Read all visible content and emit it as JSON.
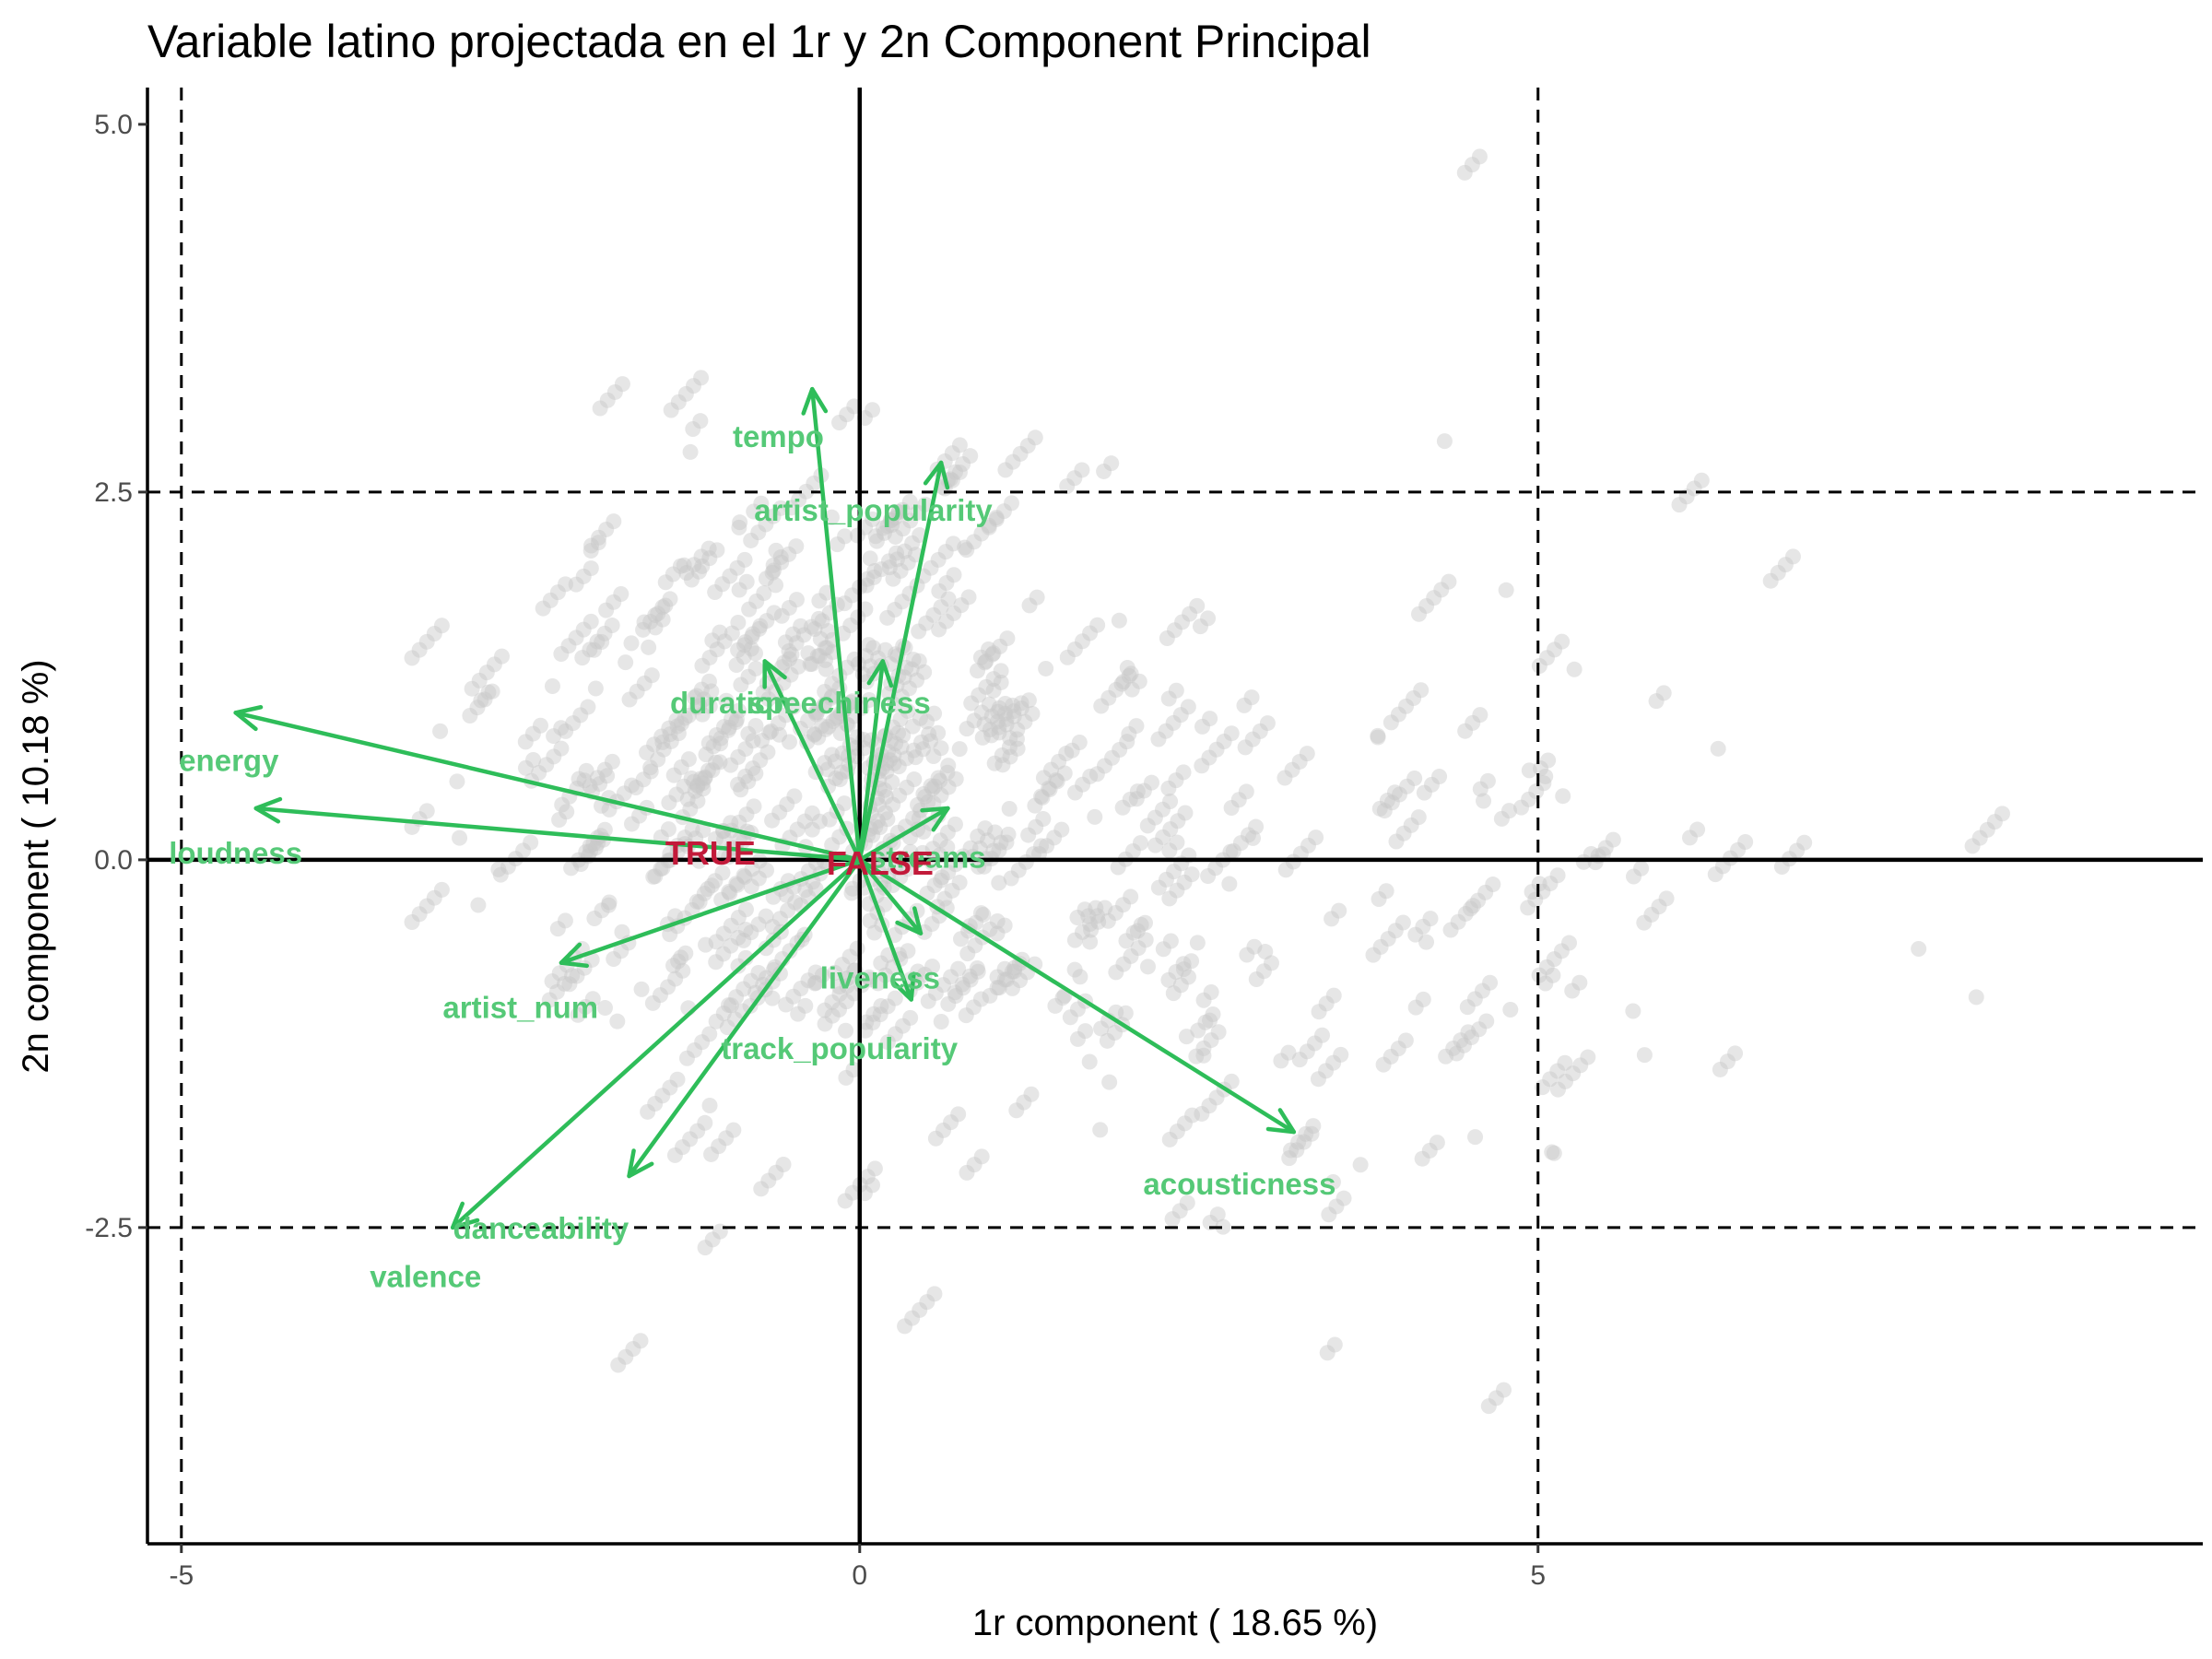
{
  "chart_data": {
    "type": "scatter",
    "title": "Variable latino projectada en el 1r y 2n Component Principal",
    "xlabel": "1r component ( 18.65 %)",
    "ylabel": "2n component ( 10.18 %)",
    "xlim": [
      -5.25,
      9.9
    ],
    "ylim": [
      -4.65,
      5.25
    ],
    "x_ticks": [
      {
        "value": -5,
        "label": "-5"
      },
      {
        "value": 0,
        "label": "0"
      },
      {
        "value": 5,
        "label": "5"
      }
    ],
    "y_ticks": [
      {
        "value": 5.0,
        "label": "5.0"
      },
      {
        "value": 2.5,
        "label": "2.5"
      },
      {
        "value": 0.0,
        "label": "0.0"
      },
      {
        "value": -2.5,
        "label": "-2.5"
      }
    ],
    "reference_lines": {
      "x": [
        -5,
        5
      ],
      "y": [
        -2.5,
        2.5
      ],
      "style": "dashed"
    },
    "zero_lines": {
      "x": 0,
      "y": 0
    },
    "grid": false,
    "legend": "none",
    "point_color": "#c8c8c8",
    "arrow_color": "#2ebd59",
    "label_color": "#55c977",
    "category_color": "#c21a3a",
    "variables": [
      {
        "name": "energy",
        "x": -4.6,
        "y": 1.0,
        "label": "energy",
        "label_x": -4.65,
        "label_y": 0.68
      },
      {
        "name": "loudness",
        "x": -4.45,
        "y": 0.35,
        "label": "loudness",
        "label_x": -4.6,
        "label_y": 0.05
      },
      {
        "name": "tempo",
        "x": -0.35,
        "y": 3.2,
        "label": "tempo",
        "label_x": -0.6,
        "label_y": 2.88
      },
      {
        "name": "artist_popularity",
        "x": 0.6,
        "y": 2.7,
        "label": "artist_popularity",
        "label_x": 0.1,
        "label_y": 2.38
      },
      {
        "name": "duration",
        "x": -0.7,
        "y": 1.35,
        "label": "duration",
        "label_x": -0.95,
        "label_y": 1.07
      },
      {
        "name": "speechiness",
        "x": 0.17,
        "y": 1.35,
        "label": "speechiness",
        "label_x": -0.15,
        "label_y": 1.07
      },
      {
        "name": "streams",
        "x": 0.65,
        "y": 0.35,
        "label": "streams",
        "label_x": 0.5,
        "label_y": 0.02
      },
      {
        "name": "liveness",
        "x": 0.45,
        "y": -0.5,
        "label": "liveness",
        "label_x": 0.15,
        "label_y": -0.8
      },
      {
        "name": "track_popularity",
        "x": 0.38,
        "y": -0.95,
        "label": "track_popularity",
        "label_x": -0.15,
        "label_y": -1.28
      },
      {
        "name": "artist_num",
        "x": -2.2,
        "y": -0.7,
        "label": "artist_num",
        "label_x": -2.5,
        "label_y": -1.0
      },
      {
        "name": "acousticness",
        "x": 3.2,
        "y": -1.85,
        "label": "acousticness",
        "label_x": 2.8,
        "label_y": -2.2
      },
      {
        "name": "danceability",
        "x": -1.7,
        "y": -2.15,
        "label": "danceability",
        "label_x": -2.35,
        "label_y": -2.5
      },
      {
        "name": "valence",
        "x": -3.0,
        "y": -2.5,
        "label": "valence",
        "label_x": -3.2,
        "label_y": -2.83
      }
    ],
    "categories": [
      {
        "name": "TRUE",
        "label": "TRUE",
        "x": -1.1,
        "y": 0.05
      },
      {
        "name": "FALSE",
        "label": "FALSE",
        "x": 0.15,
        "y": -0.02
      }
    ],
    "points_approx_count": 2200,
    "points_approx_distribution": "dense cloud centered near (-0.5, 0.5), spread x from about -3.5 to 9.2 and y from about -4.3 to 4.8, with diagonal streaks"
  }
}
